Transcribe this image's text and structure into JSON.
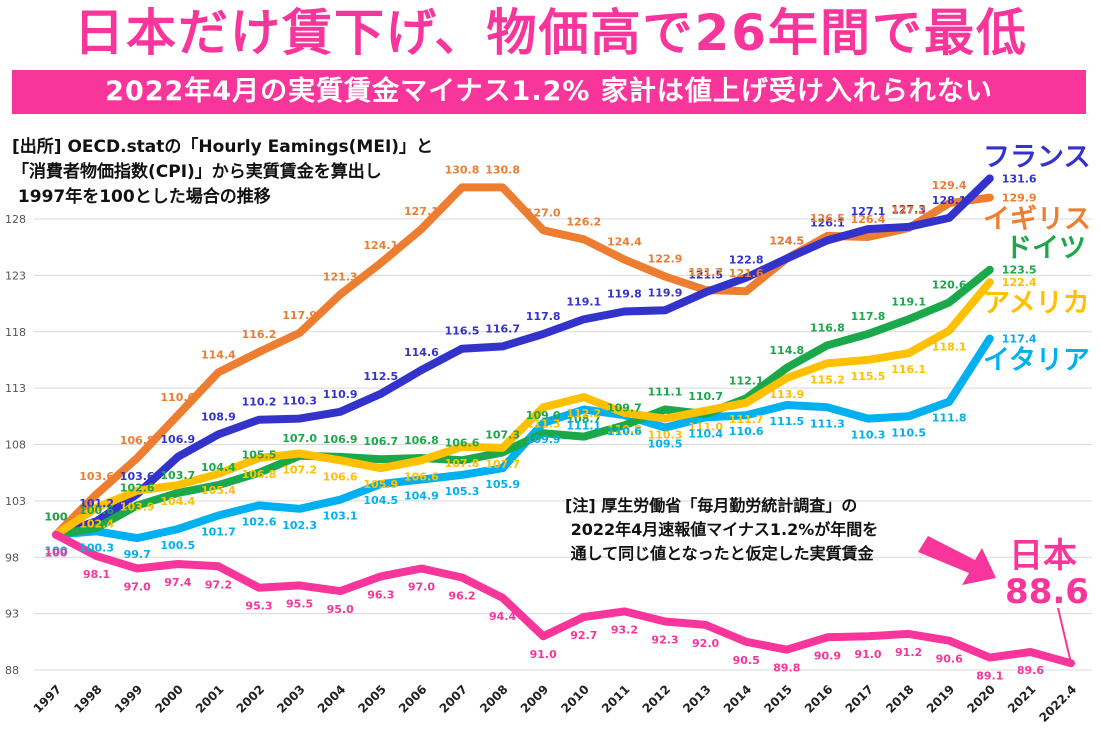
{
  "header": {
    "title": "日本だけ賃下げ、物価高で26年間で最低",
    "subtitle": "2022年4月の実質賃金マイナス1.2% 家計は値上げ受け入れられない"
  },
  "source_note": "[出所] OECD.statの「Hourly Eamings(MEI)」と\n「消費者物価指数(CPI)」から実質賃金を算出し\n 1997年を100とした場合の推移",
  "footnote": "[注] 厚生労働省「毎月勤労統計調査」の\n 2022年4月速報値マイナス1.2%が年間を\n 通して同じ値となったと仮定した実質賃金",
  "japan_callout": {
    "label": "日本",
    "value": "88.6",
    "arrow_icon": "arrow-right-down-icon"
  },
  "chart_data": {
    "type": "line",
    "title": "日本だけ賃下げ、物価高で26年間で最低",
    "subtitle": "2022年4月の実質賃金マイナス1.2% 家計は値上げ受け入れられない",
    "xlabel": "",
    "ylabel": "",
    "ylim": [
      88,
      131
    ],
    "yticks": [
      88,
      93,
      98,
      103,
      108,
      113,
      118,
      123,
      128
    ],
    "grid": true,
    "legend": "direct-labels-right",
    "categories": [
      "1997",
      "1998",
      "1999",
      "2000",
      "2001",
      "2002",
      "2003",
      "2004",
      "2005",
      "2006",
      "2007",
      "2008",
      "2009",
      "2010",
      "2011",
      "2012",
      "2013",
      "2014",
      "2015",
      "2016",
      "2017",
      "2018",
      "2019",
      "2020",
      "2021",
      "2022.4"
    ],
    "series": [
      {
        "name": "フランス",
        "color": "#3333cc",
        "values": [
          100,
          101.2,
          103.6,
          106.9,
          108.9,
          110.2,
          110.3,
          110.9,
          112.5,
          114.6,
          116.5,
          116.7,
          117.8,
          119.1,
          119.8,
          119.9,
          121.5,
          122.8,
          124.5,
          126.1,
          127.1,
          127.3,
          128.1,
          131.6,
          null,
          null
        ]
      },
      {
        "name": "イギリス",
        "color": "#ed7d31",
        "values": [
          100,
          103.6,
          106.8,
          110.6,
          114.4,
          116.2,
          117.9,
          121.3,
          124.1,
          127.1,
          130.8,
          130.8,
          127.0,
          126.2,
          124.4,
          122.9,
          121.7,
          121.6,
          124.5,
          126.5,
          126.4,
          127.2,
          129.4,
          129.9,
          null,
          null
        ]
      },
      {
        "name": "ドイツ",
        "color": "#1aa84a",
        "values": [
          100,
          100.6,
          102.6,
          103.7,
          104.4,
          105.5,
          107.0,
          106.9,
          106.7,
          106.8,
          106.6,
          107.3,
          109.0,
          108.7,
          109.7,
          111.1,
          110.7,
          112.1,
          114.8,
          116.8,
          117.8,
          119.1,
          120.6,
          123.5,
          null,
          null
        ]
      },
      {
        "name": "アメリカ",
        "color": "#ffc000",
        "values": [
          100,
          102.4,
          103.9,
          104.4,
          105.4,
          106.8,
          107.2,
          106.6,
          105.9,
          106.6,
          107.8,
          107.7,
          111.3,
          112.2,
          110.8,
          110.3,
          111.0,
          111.7,
          113.9,
          115.2,
          115.5,
          116.1,
          118.1,
          122.4,
          null,
          null
        ]
      },
      {
        "name": "イタリア",
        "color": "#00b0f0",
        "values": [
          100,
          100.3,
          99.7,
          100.5,
          101.7,
          102.6,
          102.3,
          103.1,
          104.5,
          104.9,
          105.3,
          105.9,
          109.9,
          111.1,
          110.6,
          109.5,
          110.4,
          110.6,
          111.5,
          111.3,
          110.3,
          110.5,
          111.8,
          117.4,
          null,
          null
        ]
      },
      {
        "name": "日本",
        "color": "#f8359a",
        "values": [
          100,
          98.1,
          97.0,
          97.4,
          97.2,
          95.3,
          95.5,
          95.0,
          96.3,
          97.0,
          96.2,
          94.4,
          91.0,
          92.7,
          93.2,
          92.3,
          92.0,
          90.5,
          89.8,
          90.9,
          91.0,
          91.2,
          90.6,
          89.1,
          89.6,
          88.6
        ]
      }
    ]
  }
}
